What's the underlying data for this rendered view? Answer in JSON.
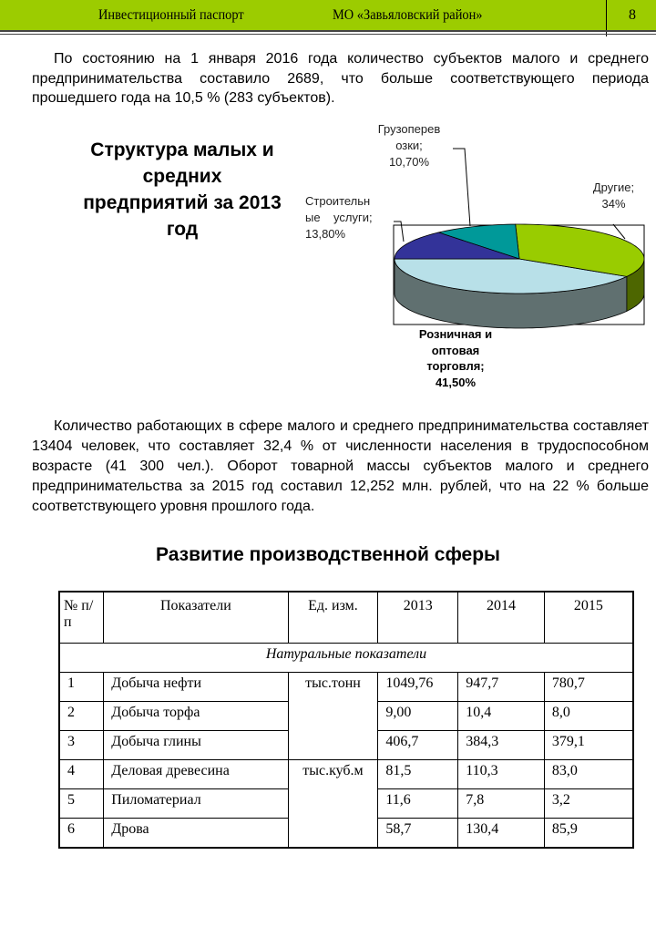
{
  "header": {
    "title": "Инвестиционный паспорт",
    "municipality": "МО «Завьяловский район»",
    "page": "8"
  },
  "para1": "По состоянию на 1 января 2016 года количество субъектов малого и среднего предпринимательства составило 2689, что больше соответствующего периода прошедшего года на 10,5 % (283 субъектов).",
  "para2": "Количество работающих в сфере малого и среднего предпринимательства составляет 13404 человек, что составляет 32,4 % от численности населения в трудоспособном возрасте (41 300 чел.). Оборот товарной массы субъектов малого и среднего предпринимательства за 2015 год составил 12,252 млн. рублей, что на 22 % больше соответствующего уровня прошлого года.",
  "chart_data": {
    "type": "pie",
    "title": "Структура малых и средних предприятий за 2013 год",
    "style": "3d",
    "slices": [
      {
        "label": "Розничная и оптовая торговля; 41,50%",
        "value": 41.5,
        "color": "#b8e0e8",
        "side": "#607070"
      },
      {
        "label": "Другие; 34%",
        "value": 34,
        "color": "#99cc00",
        "side": "#4d6600"
      },
      {
        "label": "Грузоперевозки; 10,70%",
        "value": 10.7,
        "color": "#009999",
        "side": "#005555"
      },
      {
        "label": "Строительные услуги; 13,80%",
        "value": 13.8,
        "color": "#333399",
        "side": "#1a1a55"
      }
    ],
    "label_texts": {
      "retail": [
        "Розничная и",
        "оптовая",
        "торговля;",
        "41,50%"
      ],
      "other": [
        "Другие;",
        "34%"
      ],
      "cargo": [
        "Грузоперев",
        "озки;",
        "10,70%"
      ],
      "construction": [
        "Строительн",
        "ые    услуги;",
        "13,80%"
      ]
    }
  },
  "section_title": "Развитие производственной сферы",
  "table": {
    "headers": [
      "№ п/п",
      "Показатели",
      "Ед. изм.",
      "2013",
      "2014",
      "2015"
    ],
    "subheader": "Натуральные показатели",
    "rows": [
      [
        "1",
        "Добыча нефти",
        "тыс.тонн",
        "1049,76",
        "947,7",
        "780,7"
      ],
      [
        "2",
        "Добыча торфа",
        "",
        "9,00",
        "10,4",
        "8,0"
      ],
      [
        "3",
        "Добыча глины",
        "",
        "406,7",
        "384,3",
        "379,1"
      ],
      [
        "4",
        "Деловая древесина",
        "тыс.куб.м",
        "81,5",
        "110,3",
        "83,0"
      ],
      [
        "5",
        "Пиломатериал",
        "",
        "11,6",
        "7,8",
        "3,2"
      ],
      [
        "6",
        "Дрова",
        "",
        "58,7",
        "130,4",
        "85,9"
      ]
    ]
  }
}
